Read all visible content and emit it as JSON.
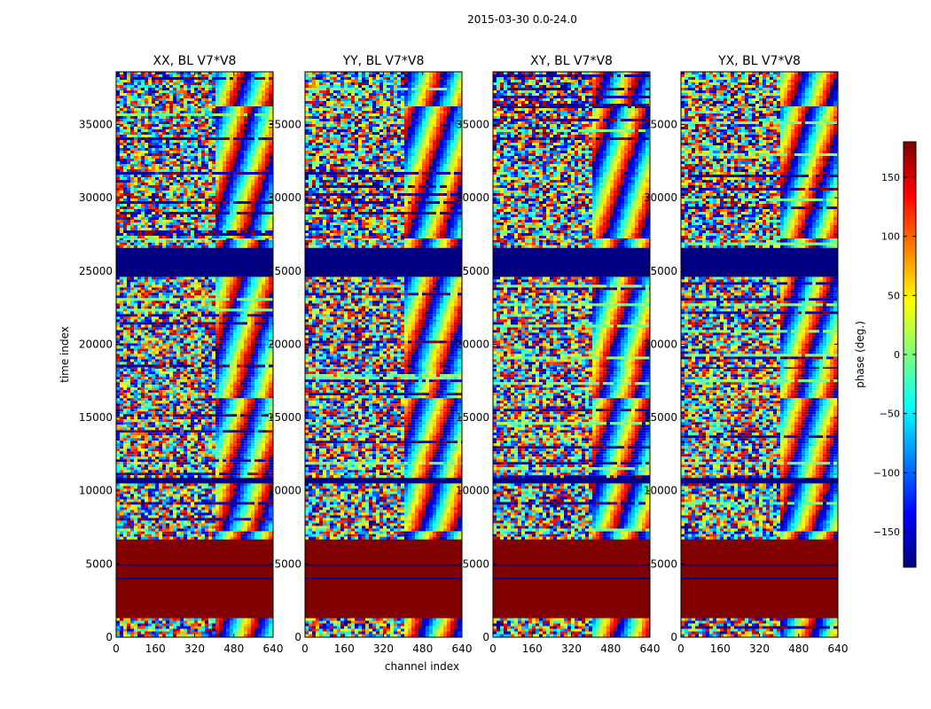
{
  "figure_title": "2015-03-30 0.0-24.0",
  "chart_data": {
    "type": "heatmap",
    "title": "2015-03-30 0.0-24.0",
    "xlabel": "channel index",
    "ylabel": "time index",
    "xlim": [
      0,
      640
    ],
    "ylim": [
      0,
      38600
    ],
    "x_ticks": [
      0,
      160,
      320,
      480,
      640
    ],
    "y_ticks": [
      0,
      5000,
      10000,
      15000,
      20000,
      25000,
      30000,
      35000
    ],
    "panels": [
      {
        "title": "XX, BL V7*V8",
        "noise_split_channel": 400
      },
      {
        "title": "YY, BL V7*V8",
        "noise_split_channel": 400
      },
      {
        "title": "XY, BL V7*V8",
        "noise_split_channel": 400
      },
      {
        "title": "YX, BL V7*V8",
        "noise_split_channel": 400
      }
    ],
    "time_bands": [
      {
        "t0": 0,
        "t1": 1300,
        "kind": "noise"
      },
      {
        "t0": 1300,
        "t1": 6800,
        "kind": "const",
        "phase": 180
      },
      {
        "t0": 6800,
        "t1": 7400,
        "kind": "noise"
      },
      {
        "t0": 7400,
        "t1": 10500,
        "kind": "noise"
      },
      {
        "t0": 10500,
        "t1": 11000,
        "kind": "const",
        "phase": -180
      },
      {
        "t0": 11000,
        "t1": 16500,
        "kind": "noise"
      },
      {
        "t0": 16500,
        "t1": 18500,
        "kind": "noise"
      },
      {
        "t0": 18500,
        "t1": 24600,
        "kind": "noise"
      },
      {
        "t0": 24600,
        "t1": 26600,
        "kind": "const",
        "phase": -180
      },
      {
        "t0": 26600,
        "t1": 27300,
        "kind": "noise"
      },
      {
        "t0": 27300,
        "t1": 36300,
        "kind": "noise"
      },
      {
        "t0": 36300,
        "t1": 38600,
        "kind": "noise"
      }
    ],
    "colorbar": {
      "label": "phase (deg.)",
      "range": [
        -180,
        180
      ],
      "ticks": [
        150,
        100,
        50,
        0,
        -50,
        -100,
        -150
      ],
      "tick_labels": [
        "150",
        "100",
        "50",
        "0",
        "−50",
        "−100",
        "−150"
      ],
      "colormap": "jet",
      "stops": [
        "#00007f",
        "#0000ff",
        "#007fff",
        "#00ffff",
        "#7fff7f",
        "#ffff00",
        "#ff7f00",
        "#ff0000",
        "#7f0000"
      ]
    }
  }
}
